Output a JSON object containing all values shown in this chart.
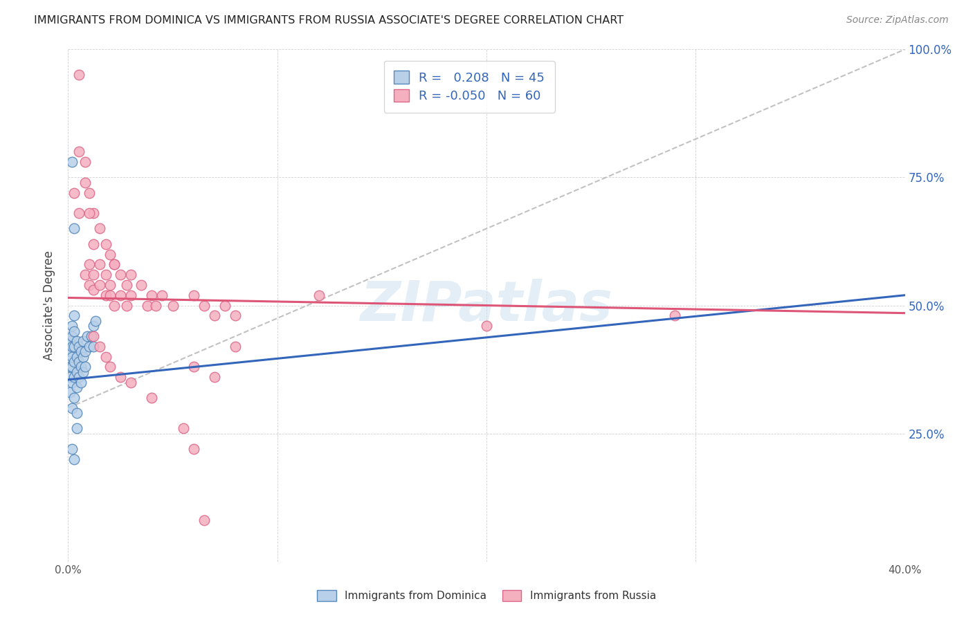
{
  "title": "IMMIGRANTS FROM DOMINICA VS IMMIGRANTS FROM RUSSIA ASSOCIATE'S DEGREE CORRELATION CHART",
  "source": "Source: ZipAtlas.com",
  "ylabel": "Associate's Degree",
  "x_min": 0.0,
  "x_max": 0.4,
  "y_min": 0.0,
  "y_max": 1.0,
  "dominica_color": "#b8d0e8",
  "russia_color": "#f5b0c0",
  "dominica_edge_color": "#5588bb",
  "russia_edge_color": "#dd6688",
  "trendline_dominica_color": "#3366bb",
  "trendline_russia_color": "#dd5577",
  "R_dominica": 0.208,
  "N_dominica": 45,
  "R_russia": -0.05,
  "N_russia": 60,
  "legend_text_color": "#3366bb",
  "watermark": "ZIPatlas",
  "dominica_points": [
    [
      0.001,
      0.33
    ],
    [
      0.001,
      0.36
    ],
    [
      0.001,
      0.38
    ],
    [
      0.001,
      0.41
    ],
    [
      0.001,
      0.43
    ],
    [
      0.002,
      0.3
    ],
    [
      0.002,
      0.35
    ],
    [
      0.002,
      0.38
    ],
    [
      0.002,
      0.4
    ],
    [
      0.002,
      0.42
    ],
    [
      0.002,
      0.44
    ],
    [
      0.002,
      0.46
    ],
    [
      0.003,
      0.32
    ],
    [
      0.003,
      0.36
    ],
    [
      0.003,
      0.39
    ],
    [
      0.003,
      0.42
    ],
    [
      0.003,
      0.45
    ],
    [
      0.003,
      0.48
    ],
    [
      0.004,
      0.34
    ],
    [
      0.004,
      0.37
    ],
    [
      0.004,
      0.4
    ],
    [
      0.004,
      0.43
    ],
    [
      0.005,
      0.36
    ],
    [
      0.005,
      0.39
    ],
    [
      0.005,
      0.42
    ],
    [
      0.006,
      0.38
    ],
    [
      0.006,
      0.41
    ],
    [
      0.007,
      0.4
    ],
    [
      0.007,
      0.43
    ],
    [
      0.008,
      0.41
    ],
    [
      0.009,
      0.44
    ],
    [
      0.01,
      0.42
    ],
    [
      0.011,
      0.44
    ],
    [
      0.012,
      0.46
    ],
    [
      0.013,
      0.47
    ],
    [
      0.002,
      0.78
    ],
    [
      0.003,
      0.65
    ],
    [
      0.002,
      0.22
    ],
    [
      0.003,
      0.2
    ],
    [
      0.004,
      0.29
    ],
    [
      0.004,
      0.26
    ],
    [
      0.006,
      0.35
    ],
    [
      0.007,
      0.37
    ],
    [
      0.008,
      0.38
    ],
    [
      0.012,
      0.42
    ]
  ],
  "russia_points": [
    [
      0.005,
      0.95
    ],
    [
      0.008,
      0.78
    ],
    [
      0.01,
      0.72
    ],
    [
      0.012,
      0.68
    ],
    [
      0.015,
      0.65
    ],
    [
      0.018,
      0.62
    ],
    [
      0.02,
      0.6
    ],
    [
      0.022,
      0.58
    ],
    [
      0.005,
      0.8
    ],
    [
      0.008,
      0.74
    ],
    [
      0.01,
      0.68
    ],
    [
      0.012,
      0.62
    ],
    [
      0.003,
      0.72
    ],
    [
      0.005,
      0.68
    ],
    [
      0.008,
      0.56
    ],
    [
      0.01,
      0.54
    ],
    [
      0.012,
      0.53
    ],
    [
      0.015,
      0.54
    ],
    [
      0.018,
      0.52
    ],
    [
      0.02,
      0.52
    ],
    [
      0.022,
      0.5
    ],
    [
      0.025,
      0.52
    ],
    [
      0.028,
      0.5
    ],
    [
      0.03,
      0.52
    ],
    [
      0.035,
      0.54
    ],
    [
      0.038,
      0.5
    ],
    [
      0.04,
      0.52
    ],
    [
      0.042,
      0.5
    ],
    [
      0.045,
      0.52
    ],
    [
      0.05,
      0.5
    ],
    [
      0.06,
      0.52
    ],
    [
      0.065,
      0.5
    ],
    [
      0.07,
      0.48
    ],
    [
      0.075,
      0.5
    ],
    [
      0.08,
      0.48
    ],
    [
      0.01,
      0.58
    ],
    [
      0.012,
      0.56
    ],
    [
      0.015,
      0.58
    ],
    [
      0.018,
      0.56
    ],
    [
      0.02,
      0.54
    ],
    [
      0.022,
      0.58
    ],
    [
      0.025,
      0.56
    ],
    [
      0.028,
      0.54
    ],
    [
      0.03,
      0.56
    ],
    [
      0.012,
      0.44
    ],
    [
      0.015,
      0.42
    ],
    [
      0.018,
      0.4
    ],
    [
      0.02,
      0.38
    ],
    [
      0.025,
      0.36
    ],
    [
      0.03,
      0.35
    ],
    [
      0.04,
      0.32
    ],
    [
      0.06,
      0.38
    ],
    [
      0.07,
      0.36
    ],
    [
      0.055,
      0.26
    ],
    [
      0.06,
      0.22
    ],
    [
      0.065,
      0.08
    ],
    [
      0.08,
      0.42
    ],
    [
      0.12,
      0.52
    ],
    [
      0.2,
      0.46
    ],
    [
      0.29,
      0.48
    ]
  ],
  "trendline_dom_x0": 0.0,
  "trendline_dom_y0": 0.355,
  "trendline_dom_x1": 0.4,
  "trendline_dom_y1": 0.52,
  "trendline_rus_x0": 0.0,
  "trendline_rus_y0": 0.515,
  "trendline_rus_x1": 0.4,
  "trendline_rus_y1": 0.485,
  "dashline_x0": 0.0,
  "dashline_y0": 0.3,
  "dashline_x1": 0.4,
  "dashline_y1": 1.0
}
